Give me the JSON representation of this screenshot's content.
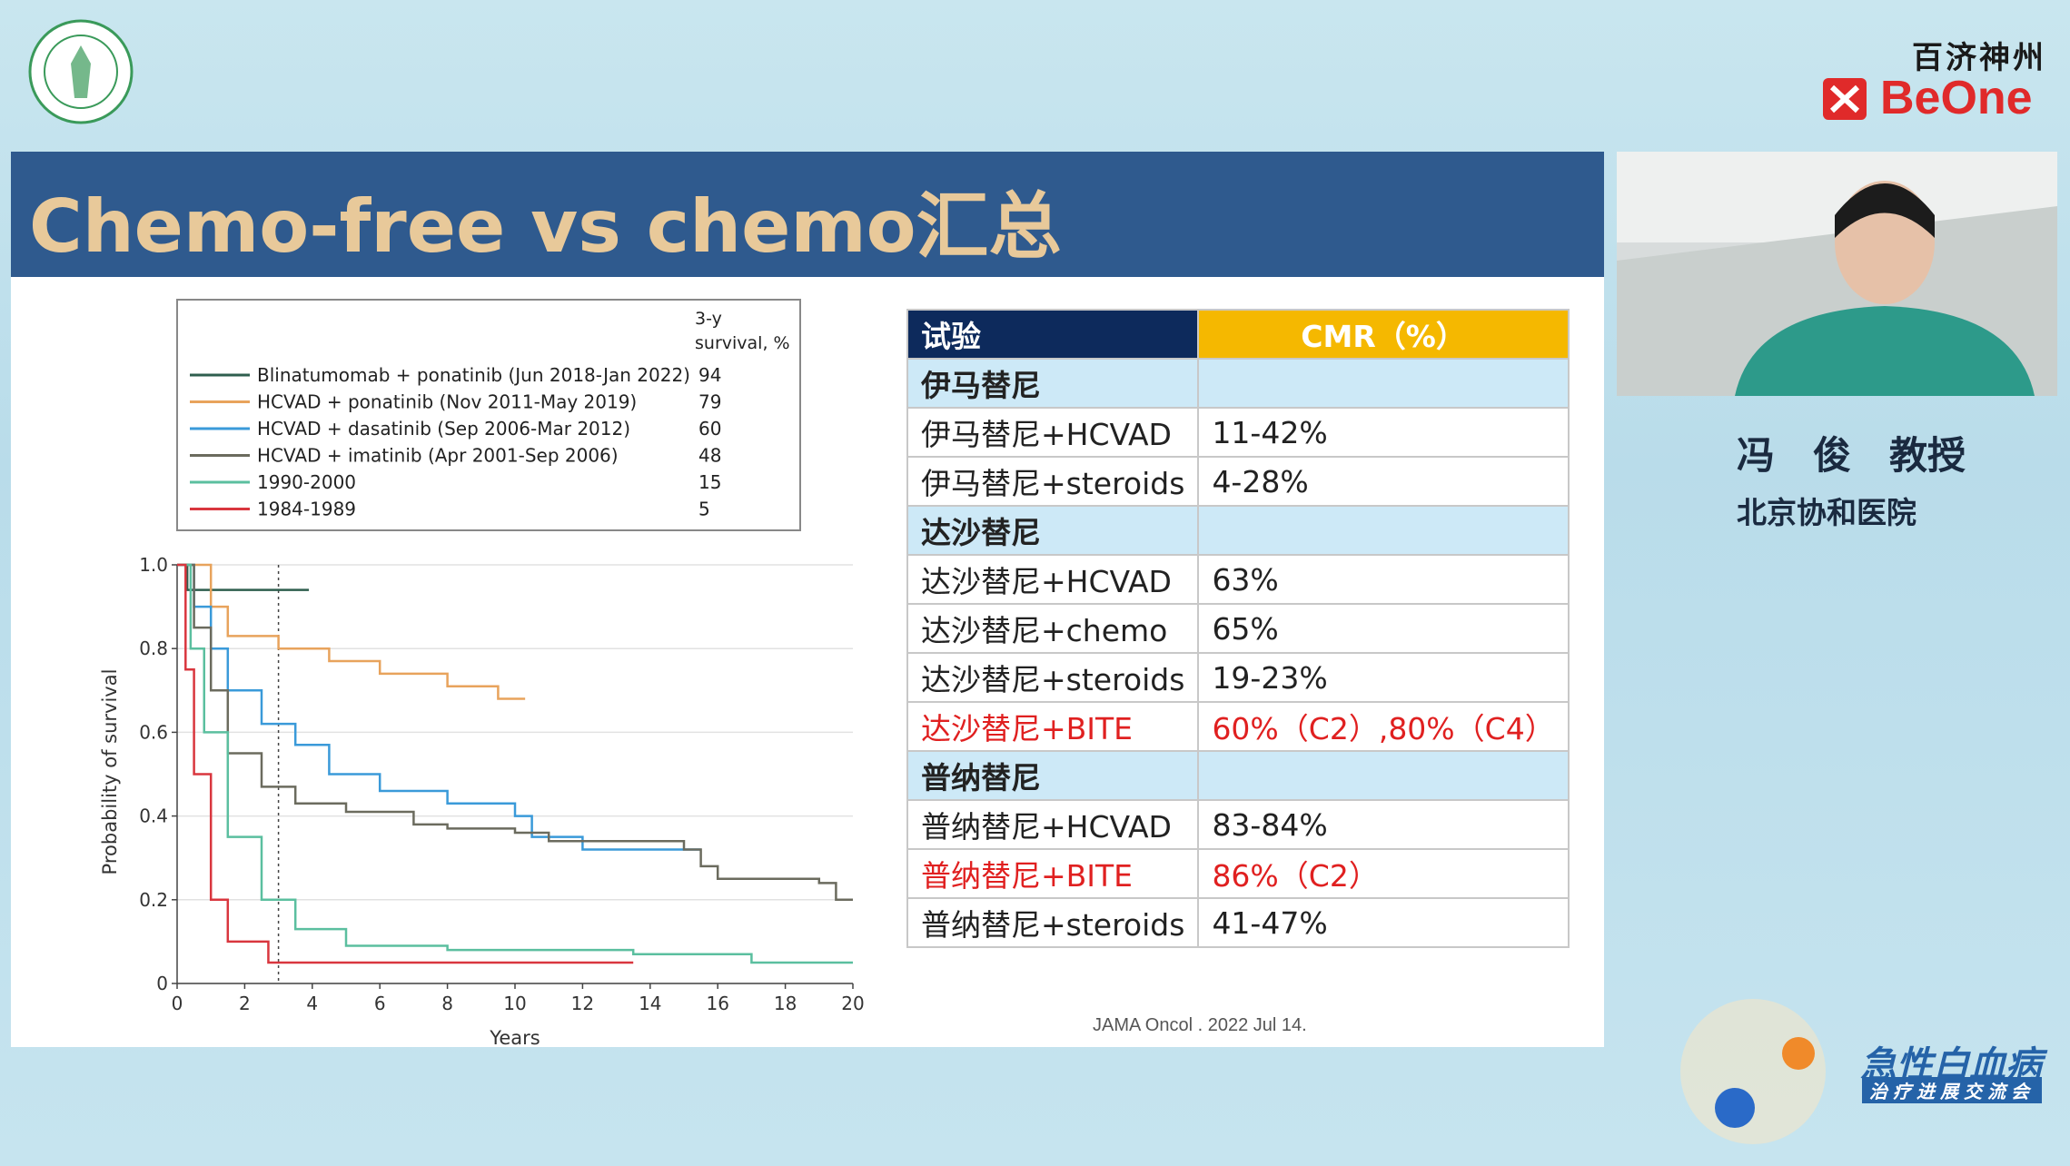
{
  "brand": {
    "name_cn": "百济神州",
    "name_en": "BeOne"
  },
  "slide": {
    "title": "Chemo-free vs chemo汇总",
    "citation": "JAMA Oncol . 2022 Jul 14."
  },
  "chart_data": {
    "type": "line",
    "xlabel": "Years",
    "ylabel": "Probability of survival",
    "legend_value_header": "3-y survival, %",
    "xlim": [
      0,
      20
    ],
    "xticks": [
      0,
      2,
      4,
      6,
      8,
      10,
      12,
      14,
      16,
      18,
      20
    ],
    "ylim": [
      0,
      1
    ],
    "yticks": [
      0,
      0.2,
      0.4,
      0.6,
      0.8,
      {
        "value": 1,
        "label": "1.0"
      }
    ],
    "grid": true,
    "vline": 3,
    "series": [
      {
        "name": "Blinatumomab + ponatinib (Jun 2018-Jan 2022)",
        "color": "#2e5e4e",
        "survival_3y": 94,
        "x": [
          0,
          0.3,
          3.9
        ],
        "values": [
          1,
          0.94,
          0.94
        ]
      },
      {
        "name": "HCVAD + ponatinib (Nov 2011-May 2019)",
        "color": "#e8a35c",
        "survival_3y": 79,
        "x": [
          0,
          1,
          1.5,
          3,
          4.5,
          6,
          8,
          9.5,
          10.3
        ],
        "values": [
          1,
          0.9,
          0.83,
          0.8,
          0.77,
          0.74,
          0.71,
          0.68,
          0.68
        ]
      },
      {
        "name": "HCVAD + dasatinib (Sep 2006-Mar 2012)",
        "color": "#3a9ad9",
        "survival_3y": 60,
        "x": [
          0,
          0.5,
          1,
          1.5,
          2.5,
          3.5,
          4.5,
          6,
          8,
          10,
          10.5,
          12,
          15.5
        ],
        "values": [
          1,
          0.9,
          0.8,
          0.7,
          0.62,
          0.57,
          0.5,
          0.46,
          0.43,
          0.4,
          0.35,
          0.32,
          0.32
        ]
      },
      {
        "name": "HCVAD + imatinib (Apr 2001-Sep 2006)",
        "color": "#6b6b5e",
        "survival_3y": 48,
        "x": [
          0,
          0.5,
          1,
          1.5,
          2.5,
          3.5,
          5,
          7,
          8,
          10,
          11,
          15,
          15.5,
          16,
          19,
          19.5,
          20
        ],
        "values": [
          1,
          0.85,
          0.7,
          0.55,
          0.47,
          0.43,
          0.41,
          0.38,
          0.37,
          0.36,
          0.34,
          0.32,
          0.28,
          0.25,
          0.24,
          0.2,
          0.2
        ]
      },
      {
        "name": "1990-2000",
        "color": "#5bbf9f",
        "survival_3y": 15,
        "x": [
          0,
          0.4,
          0.8,
          1.5,
          2.5,
          3.5,
          5,
          8,
          13.5,
          17,
          20
        ],
        "values": [
          1,
          0.8,
          0.6,
          0.35,
          0.2,
          0.13,
          0.09,
          0.08,
          0.07,
          0.05,
          0.05
        ]
      },
      {
        "name": "1984-1989",
        "color": "#d9363e",
        "survival_3y": 5,
        "x": [
          0,
          0.25,
          0.5,
          1,
          1.5,
          2.7,
          13.5
        ],
        "values": [
          1,
          0.75,
          0.5,
          0.2,
          0.1,
          0.05,
          0.05
        ]
      }
    ]
  },
  "table": {
    "header": [
      "试验",
      "CMR（%）"
    ],
    "groups": [
      {
        "name": "伊马替尼",
        "rows": [
          {
            "trial": "伊马替尼+HCVAD",
            "cmr": "11-42%"
          },
          {
            "trial": "伊马替尼+steroids",
            "cmr": "4-28%"
          }
        ]
      },
      {
        "name": "达沙替尼",
        "rows": [
          {
            "trial": "达沙替尼+HCVAD",
            "cmr": "63%"
          },
          {
            "trial": "达沙替尼+chemo",
            "cmr": "65%"
          },
          {
            "trial": "达沙替尼+steroids",
            "cmr": "19-23%"
          },
          {
            "trial": "达沙替尼+BITE",
            "cmr": "60%（C2）,80%（C4）",
            "color": "#e02020"
          }
        ]
      },
      {
        "name": "普纳替尼",
        "rows": [
          {
            "trial": "普纳替尼+HCVAD",
            "cmr": "83-84%"
          },
          {
            "trial": "普纳替尼+BITE",
            "cmr": "86%（C2）",
            "color": "#e02020"
          },
          {
            "trial": "普纳替尼+steroids",
            "cmr": "41-47%"
          }
        ]
      }
    ]
  },
  "speaker": {
    "name": "冯　俊　教授",
    "affiliation": "北京协和医院"
  },
  "event": {
    "title": "急性白血病",
    "subtitle": "治疗进展交流会"
  }
}
